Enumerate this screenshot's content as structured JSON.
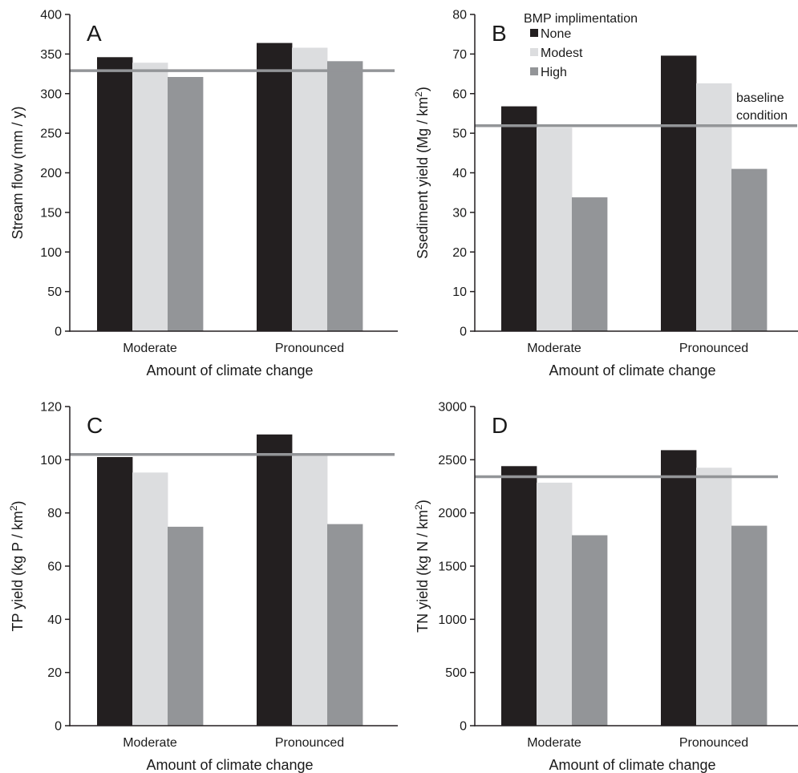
{
  "colors": {
    "none": "#231f20",
    "modest": "#dcdddf",
    "high": "#939598",
    "baseline": "#939598",
    "axis": "#231f20"
  },
  "chart_data": [
    {
      "type": "bar",
      "panel_letter": "A",
      "categories": [
        "Moderate",
        "Pronounced"
      ],
      "series": [
        {
          "name": "None",
          "values": [
            346,
            364
          ]
        },
        {
          "name": "Modest",
          "values": [
            339,
            358
          ]
        },
        {
          "name": "High",
          "values": [
            321,
            341
          ]
        }
      ],
      "baseline": 329,
      "ylim": [
        0,
        400
      ],
      "yticks": [
        0,
        50,
        100,
        150,
        200,
        250,
        300,
        350,
        400
      ],
      "ylabel": "Stream flow (mm / y)",
      "ylabel_sup": "",
      "ylabel_tail": "",
      "xlabel": "Amount of climate change"
    },
    {
      "type": "bar",
      "panel_letter": "B",
      "categories": [
        "Moderate",
        "Pronounced"
      ],
      "series": [
        {
          "name": "None",
          "values": [
            56.8,
            69.6
          ]
        },
        {
          "name": "Modest",
          "values": [
            51.4,
            62.6
          ]
        },
        {
          "name": "High",
          "values": [
            33.8,
            41.0
          ]
        }
      ],
      "baseline": 51.9,
      "ylim": [
        0,
        80
      ],
      "yticks": [
        0,
        10,
        20,
        30,
        40,
        50,
        60,
        70,
        80
      ],
      "ylabel": "Ssediment yield (Mg / km",
      "ylabel_sup": "2",
      "ylabel_tail": ")",
      "xlabel": "Amount of climate change",
      "legend": {
        "title": "BMP implimentation",
        "items": [
          "None",
          "Modest",
          "High"
        ],
        "placement": "top-right"
      },
      "baseline_label": [
        "baseline",
        "condition"
      ]
    },
    {
      "type": "bar",
      "panel_letter": "C",
      "categories": [
        "Moderate",
        "Pronounced"
      ],
      "series": [
        {
          "name": "None",
          "values": [
            101,
            109.5
          ]
        },
        {
          "name": "Modest",
          "values": [
            95.2,
            101.5
          ]
        },
        {
          "name": "High",
          "values": [
            74.8,
            75.8
          ]
        }
      ],
      "baseline": 102,
      "ylim": [
        0,
        120
      ],
      "yticks": [
        0,
        20,
        40,
        60,
        80,
        100,
        120
      ],
      "ylabel": "TP yield (kg P / km",
      "ylabel_sup": "2",
      "ylabel_tail": ")",
      "xlabel": "Amount of climate change"
    },
    {
      "type": "bar",
      "panel_letter": "D",
      "categories": [
        "Moderate",
        "Pronounced"
      ],
      "series": [
        {
          "name": "None",
          "values": [
            2440,
            2590
          ]
        },
        {
          "name": "Modest",
          "values": [
            2285,
            2425
          ]
        },
        {
          "name": "High",
          "values": [
            1790,
            1880
          ]
        }
      ],
      "baseline": 2340,
      "ylim": [
        0,
        3000
      ],
      "yticks": [
        0,
        500,
        1000,
        1500,
        2000,
        2500,
        3000
      ],
      "ylabel": "TN yield (kg N / km",
      "ylabel_sup": "2",
      "ylabel_tail": ")",
      "xlabel": "Amount of climate change"
    }
  ]
}
